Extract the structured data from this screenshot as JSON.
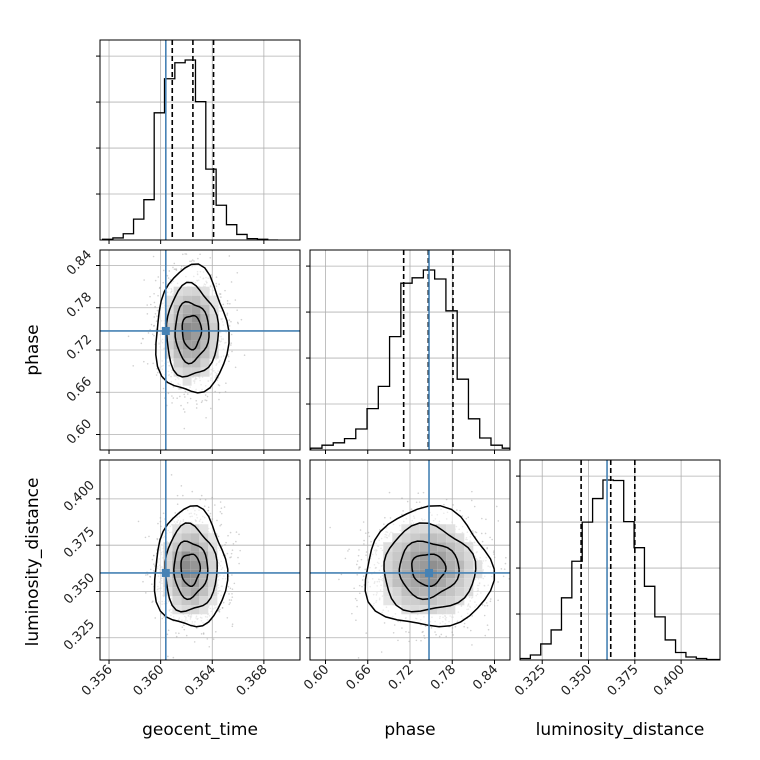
{
  "chart_data": {
    "type": "corner",
    "title": "",
    "parameters": [
      "geocent_time",
      "phase",
      "luminosity_distance"
    ],
    "truths": [
      0.3604,
      0.747,
      0.36
    ],
    "truth_color": "#4682b4",
    "grid": true,
    "x_ticks": {
      "geocent_time": [
        "0.356",
        "0.360",
        "0.364",
        "0.368"
      ],
      "phase": [
        "0.60",
        "0.66",
        "0.72",
        "0.78",
        "0.84"
      ],
      "luminosity_distance": [
        "0.325",
        "0.350",
        "0.375",
        "0.400"
      ]
    },
    "y_ticks": {
      "phase": [
        "0.60",
        "0.66",
        "0.72",
        "0.78",
        "0.84"
      ],
      "luminosity_distance": [
        "0.325",
        "0.350",
        "0.375",
        "0.400"
      ]
    },
    "ranges": {
      "geocent_time": [
        0.3553,
        0.3708
      ],
      "phase": [
        0.578,
        0.862
      ],
      "luminosity_distance": [
        0.313,
        0.421
      ]
    },
    "histograms": [
      {
        "param": "geocent_time",
        "bin_edges": [
          0.3555,
          0.3563,
          0.3571,
          0.3579,
          0.3587,
          0.3595,
          0.3603,
          0.3611,
          0.3619,
          0.3627,
          0.3635,
          0.3643,
          0.3651,
          0.3659,
          0.3667,
          0.3675,
          0.3683,
          0.3691
        ],
        "counts": [
          1,
          3,
          9,
          30,
          58,
          183,
          232,
          255,
          259,
          199,
          102,
          50,
          22,
          8,
          2,
          1,
          0
        ],
        "quantiles": [
          0.3609,
          0.3625,
          0.3641
        ]
      },
      {
        "param": "phase",
        "bin_edges": [
          0.579,
          0.595,
          0.611,
          0.627,
          0.643,
          0.659,
          0.675,
          0.691,
          0.707,
          0.723,
          0.739,
          0.755,
          0.771,
          0.787,
          0.803,
          0.819,
          0.835,
          0.851,
          0.862
        ],
        "counts": [
          3,
          8,
          12,
          19,
          35,
          69,
          106,
          189,
          278,
          287,
          300,
          285,
          232,
          118,
          52,
          20,
          8,
          3
        ],
        "quantiles": [
          0.711,
          0.746,
          0.781
        ]
      },
      {
        "param": "luminosity_distance",
        "bin_edges": [
          0.313,
          0.3186,
          0.3242,
          0.3298,
          0.3354,
          0.341,
          0.3466,
          0.3522,
          0.3578,
          0.3634,
          0.369,
          0.3746,
          0.3802,
          0.3858,
          0.3914,
          0.397,
          0.4026,
          0.4082,
          0.4138,
          0.421
        ],
        "counts": [
          3,
          10,
          32,
          60,
          124,
          197,
          275,
          322,
          359,
          358,
          276,
          224,
          147,
          86,
          40,
          15,
          6,
          3,
          1
        ],
        "quantiles": [
          0.346,
          0.362,
          0.375
        ]
      }
    ],
    "scatter_panels": [
      {
        "x": "geocent_time",
        "y": "phase",
        "center": [
          0.3624,
          0.746
        ],
        "spread": [
          0.0013,
          0.042
        ]
      },
      {
        "x": "geocent_time",
        "y": "luminosity_distance",
        "center": [
          0.3623,
          0.362
        ],
        "spread": [
          0.0013,
          0.015
        ]
      },
      {
        "x": "phase",
        "y": "luminosity_distance",
        "center": [
          0.746,
          0.362
        ],
        "spread": [
          0.042,
          0.015
        ]
      }
    ]
  }
}
